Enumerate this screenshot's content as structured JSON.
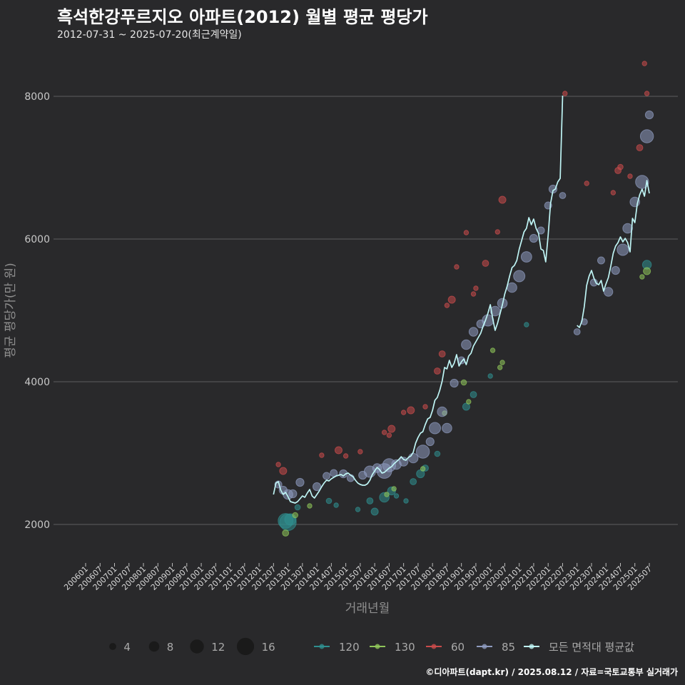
{
  "title": "흑석한강푸르지오 아파트(2012) 월별 평균 평당가",
  "subtitle": "2012-07-31 ~ 2025-07-20(최근계약일)",
  "footer": "©디아파트(dapt.kr) / 2025.08.12 / 자료=국토교통부 실거래가",
  "colors": {
    "background": "#29292b",
    "gridline": "#5d5d5f",
    "s120": "#2f8f8f",
    "s130": "#8fc65a",
    "s60": "#c94b4b",
    "s85": "#8e9bbf",
    "avgline": "#bff5f5"
  },
  "chart_data": {
    "type": "scatter",
    "title": "흑석한강푸르지오 아파트(2012) 월별 평균 평당가",
    "xlabel": "거래년월",
    "ylabel": "평균 평당가(만 원)",
    "ylim": [
      1500,
      8650
    ],
    "yticks": [
      2000,
      4000,
      6000,
      8000
    ],
    "x_range": [
      "2006-01",
      "2025-07"
    ],
    "x_ticks": [
      "200601",
      "200607",
      "200701",
      "200707",
      "200801",
      "200807",
      "200901",
      "200907",
      "201001",
      "201007",
      "201101",
      "201107",
      "201201",
      "201207",
      "201301",
      "201307",
      "201401",
      "201407",
      "201501",
      "201507",
      "201601",
      "201607",
      "201701",
      "201707",
      "201801",
      "201807",
      "201901",
      "201907",
      "202001",
      "202007",
      "202101",
      "202107",
      "202201",
      "202207",
      "202301",
      "202307",
      "202401",
      "202407",
      "202501",
      "202507"
    ],
    "legend_size": {
      "title": "",
      "entries": [
        4,
        8,
        12,
        16
      ]
    },
    "legend_series": [
      {
        "key": "s120",
        "label": "120"
      },
      {
        "key": "s130",
        "label": "130"
      },
      {
        "key": "s60",
        "label": "60"
      },
      {
        "key": "s85",
        "label": "85"
      },
      {
        "key": "avgline",
        "label": "모든 면적대 평균값"
      }
    ],
    "series": [
      {
        "name": "120",
        "key": "s120",
        "points": [
          [
            "2012-12",
            2050,
            14
          ],
          [
            "2013-01",
            2030,
            16
          ],
          [
            "2013-02",
            2070,
            10
          ],
          [
            "2013-05",
            2240,
            3
          ],
          [
            "2014-06",
            2330,
            3
          ],
          [
            "2014-09",
            2270,
            2
          ],
          [
            "2015-06",
            2210,
            2
          ],
          [
            "2015-11",
            2330,
            4
          ],
          [
            "2016-01",
            2180,
            5
          ],
          [
            "2016-05",
            2380,
            8
          ],
          [
            "2016-08",
            2470,
            6
          ],
          [
            "2016-10",
            2400,
            2
          ],
          [
            "2017-02",
            2330,
            2
          ],
          [
            "2017-05",
            2600,
            4
          ],
          [
            "2017-08",
            2710,
            6
          ],
          [
            "2017-10",
            2790,
            4
          ],
          [
            "2018-03",
            2990,
            3
          ],
          [
            "2019-03",
            3650,
            5
          ],
          [
            "2019-06",
            3820,
            4
          ],
          [
            "2020-01",
            4080,
            2
          ],
          [
            "2021-04",
            4800,
            2
          ],
          [
            "2025-06",
            5640,
            7
          ]
        ]
      },
      {
        "name": "130",
        "key": "s130",
        "points": [
          [
            "2012-12",
            1880,
            4
          ],
          [
            "2013-04",
            2130,
            3
          ],
          [
            "2013-10",
            2260,
            2
          ],
          [
            "2016-06",
            2420,
            2
          ],
          [
            "2016-09",
            2500,
            2
          ],
          [
            "2017-09",
            2780,
            2
          ],
          [
            "2018-06",
            3560,
            2
          ],
          [
            "2019-02",
            3990,
            3
          ],
          [
            "2019-04",
            3720,
            2
          ],
          [
            "2020-02",
            4440,
            2
          ],
          [
            "2020-05",
            4200,
            2
          ],
          [
            "2020-06",
            4270,
            2
          ],
          [
            "2025-06",
            5550,
            5
          ],
          [
            "2025-04",
            5470,
            2
          ]
        ]
      },
      {
        "name": "60",
        "key": "s60",
        "points": [
          [
            "2012-09",
            2840,
            2
          ],
          [
            "2012-11",
            2750,
            5
          ],
          [
            "2014-03",
            2970,
            2
          ],
          [
            "2014-10",
            3040,
            5
          ],
          [
            "2015-01",
            2960,
            2
          ],
          [
            "2015-07",
            3020,
            2
          ],
          [
            "2016-05",
            3290,
            2
          ],
          [
            "2016-07",
            3250,
            2
          ],
          [
            "2016-08",
            3340,
            5
          ],
          [
            "2017-01",
            3570,
            2
          ],
          [
            "2017-04",
            3600,
            5
          ],
          [
            "2017-10",
            3650,
            2
          ],
          [
            "2018-03",
            4150,
            4
          ],
          [
            "2018-05",
            4390,
            4
          ],
          [
            "2018-07",
            5070,
            2
          ],
          [
            "2018-09",
            5150,
            5
          ],
          [
            "2018-11",
            5610,
            2
          ],
          [
            "2019-03",
            6090,
            2
          ],
          [
            "2019-06",
            5230,
            2
          ],
          [
            "2019-07",
            5310,
            2
          ],
          [
            "2019-11",
            5660,
            4
          ],
          [
            "2020-04",
            6100,
            2
          ],
          [
            "2020-06",
            6550,
            5
          ],
          [
            "2022-08",
            8040,
            2
          ],
          [
            "2023-05",
            6780,
            2
          ],
          [
            "2024-04",
            6650,
            2
          ],
          [
            "2024-06",
            6960,
            4
          ],
          [
            "2024-07",
            7010,
            3
          ],
          [
            "2024-11",
            6880,
            2
          ],
          [
            "2025-03",
            7280,
            4
          ],
          [
            "2025-05",
            8460,
            2
          ],
          [
            "2025-06",
            8040,
            2
          ]
        ]
      },
      {
        "name": "85",
        "key": "s85",
        "points": [
          [
            "2012-09",
            2560,
            5
          ],
          [
            "2012-11",
            2480,
            6
          ],
          [
            "2013-01",
            2420,
            8
          ],
          [
            "2013-03",
            2430,
            6
          ],
          [
            "2013-06",
            2590,
            6
          ],
          [
            "2014-01",
            2530,
            6
          ],
          [
            "2014-05",
            2680,
            5
          ],
          [
            "2014-08",
            2720,
            5
          ],
          [
            "2014-12",
            2710,
            6
          ],
          [
            "2015-03",
            2650,
            5
          ],
          [
            "2015-08",
            2690,
            6
          ],
          [
            "2015-11",
            2740,
            10
          ],
          [
            "2016-02",
            2790,
            7
          ],
          [
            "2016-05",
            2750,
            14
          ],
          [
            "2016-07",
            2830,
            12
          ],
          [
            "2016-10",
            2840,
            8
          ],
          [
            "2017-01",
            2880,
            7
          ],
          [
            "2017-05",
            2930,
            8
          ],
          [
            "2017-09",
            3020,
            12
          ],
          [
            "2017-12",
            3160,
            6
          ],
          [
            "2018-02",
            3350,
            10
          ],
          [
            "2018-05",
            3580,
            8
          ],
          [
            "2018-07",
            3350,
            8
          ],
          [
            "2018-10",
            3980,
            6
          ],
          [
            "2019-01",
            4300,
            5
          ],
          [
            "2019-03",
            4520,
            8
          ],
          [
            "2019-06",
            4700,
            7
          ],
          [
            "2019-09",
            4810,
            6
          ],
          [
            "2019-12",
            4860,
            10
          ],
          [
            "2020-03",
            4990,
            8
          ],
          [
            "2020-06",
            5100,
            8
          ],
          [
            "2020-10",
            5320,
            8
          ],
          [
            "2021-01",
            5480,
            10
          ],
          [
            "2021-04",
            5750,
            9
          ],
          [
            "2021-07",
            6010,
            6
          ],
          [
            "2021-10",
            6120,
            5
          ],
          [
            "2022-01",
            6470,
            5
          ],
          [
            "2022-03",
            6700,
            6
          ],
          [
            "2022-07",
            6610,
            4
          ],
          [
            "2023-01",
            4700,
            4
          ],
          [
            "2023-04",
            4840,
            4
          ],
          [
            "2023-08",
            5390,
            5
          ],
          [
            "2023-11",
            5700,
            5
          ],
          [
            "2024-02",
            5260,
            7
          ],
          [
            "2024-05",
            5560,
            6
          ],
          [
            "2024-08",
            5850,
            10
          ],
          [
            "2024-10",
            6150,
            8
          ],
          [
            "2025-01",
            6520,
            8
          ],
          [
            "2025-04",
            6800,
            12
          ],
          [
            "2025-06",
            7440,
            12
          ],
          [
            "2025-07",
            7740,
            6
          ]
        ]
      }
    ],
    "avg_line": [
      [
        "2012-07",
        2420
      ],
      [
        "2012-08",
        2580
      ],
      [
        "2012-09",
        2600
      ],
      [
        "2012-10",
        2480
      ],
      [
        "2012-11",
        2420
      ],
      [
        "2012-12",
        2450
      ],
      [
        "2013-01",
        2390
      ],
      [
        "2013-02",
        2320
      ],
      [
        "2013-03",
        2310
      ],
      [
        "2013-04",
        2300
      ],
      [
        "2013-05",
        2320
      ],
      [
        "2013-06",
        2360
      ],
      [
        "2013-07",
        2400
      ],
      [
        "2013-08",
        2380
      ],
      [
        "2013-09",
        2440
      ],
      [
        "2013-10",
        2490
      ],
      [
        "2013-11",
        2400
      ],
      [
        "2013-12",
        2370
      ],
      [
        "2014-01",
        2420
      ],
      [
        "2014-02",
        2470
      ],
      [
        "2014-03",
        2530
      ],
      [
        "2014-04",
        2580
      ],
      [
        "2014-05",
        2620
      ],
      [
        "2014-06",
        2610
      ],
      [
        "2014-07",
        2640
      ],
      [
        "2014-08",
        2660
      ],
      [
        "2014-09",
        2680
      ],
      [
        "2014-10",
        2690
      ],
      [
        "2014-11",
        2700
      ],
      [
        "2014-12",
        2680
      ],
      [
        "2015-01",
        2710
      ],
      [
        "2015-02",
        2720
      ],
      [
        "2015-03",
        2690
      ],
      [
        "2015-04",
        2670
      ],
      [
        "2015-05",
        2620
      ],
      [
        "2015-06",
        2580
      ],
      [
        "2015-07",
        2560
      ],
      [
        "2015-08",
        2550
      ],
      [
        "2015-09",
        2550
      ],
      [
        "2015-10",
        2570
      ],
      [
        "2015-11",
        2620
      ],
      [
        "2015-12",
        2700
      ],
      [
        "2016-01",
        2750
      ],
      [
        "2016-02",
        2800
      ],
      [
        "2016-03",
        2770
      ],
      [
        "2016-04",
        2720
      ],
      [
        "2016-05",
        2730
      ],
      [
        "2016-06",
        2760
      ],
      [
        "2016-07",
        2790
      ],
      [
        "2016-08",
        2810
      ],
      [
        "2016-09",
        2850
      ],
      [
        "2016-10",
        2880
      ],
      [
        "2016-11",
        2910
      ],
      [
        "2016-12",
        2950
      ],
      [
        "2017-01",
        2910
      ],
      [
        "2017-02",
        2900
      ],
      [
        "2017-03",
        2940
      ],
      [
        "2017-04",
        2960
      ],
      [
        "2017-05",
        3010
      ],
      [
        "2017-06",
        3140
      ],
      [
        "2017-07",
        3220
      ],
      [
        "2017-08",
        3280
      ],
      [
        "2017-09",
        3300
      ],
      [
        "2017-10",
        3400
      ],
      [
        "2017-11",
        3480
      ],
      [
        "2017-12",
        3500
      ],
      [
        "2018-01",
        3600
      ],
      [
        "2018-02",
        3740
      ],
      [
        "2018-03",
        3780
      ],
      [
        "2018-04",
        3880
      ],
      [
        "2018-05",
        4010
      ],
      [
        "2018-06",
        4200
      ],
      [
        "2018-07",
        4180
      ],
      [
        "2018-08",
        4300
      ],
      [
        "2018-09",
        4200
      ],
      [
        "2018-10",
        4260
      ],
      [
        "2018-11",
        4380
      ],
      [
        "2018-12",
        4220
      ],
      [
        "2019-01",
        4280
      ],
      [
        "2019-02",
        4320
      ],
      [
        "2019-03",
        4240
      ],
      [
        "2019-04",
        4360
      ],
      [
        "2019-05",
        4400
      ],
      [
        "2019-06",
        4500
      ],
      [
        "2019-07",
        4560
      ],
      [
        "2019-08",
        4620
      ],
      [
        "2019-09",
        4680
      ],
      [
        "2019-10",
        4780
      ],
      [
        "2019-11",
        4860
      ],
      [
        "2019-12",
        4960
      ],
      [
        "2020-01",
        5080
      ],
      [
        "2020-02",
        4880
      ],
      [
        "2020-03",
        4720
      ],
      [
        "2020-04",
        4820
      ],
      [
        "2020-05",
        4950
      ],
      [
        "2020-06",
        5080
      ],
      [
        "2020-07",
        5230
      ],
      [
        "2020-08",
        5340
      ],
      [
        "2020-09",
        5480
      ],
      [
        "2020-10",
        5600
      ],
      [
        "2020-11",
        5630
      ],
      [
        "2020-12",
        5700
      ],
      [
        "2021-01",
        5860
      ],
      [
        "2021-02",
        5980
      ],
      [
        "2021-03",
        6100
      ],
      [
        "2021-04",
        6150
      ],
      [
        "2021-05",
        6300
      ],
      [
        "2021-06",
        6200
      ],
      [
        "2021-07",
        6280
      ],
      [
        "2021-08",
        6150
      ],
      [
        "2021-09",
        6080
      ],
      [
        "2021-10",
        5860
      ],
      [
        "2021-11",
        5840
      ],
      [
        "2021-12",
        5680
      ],
      [
        "2022-01",
        6050
      ],
      [
        "2022-02",
        6500
      ],
      [
        "2022-03",
        6680
      ],
      [
        "2022-04",
        6700
      ],
      [
        "2022-05",
        6800
      ],
      [
        "2022-06",
        6850
      ],
      [
        "2022-07",
        8010
      ],
      null,
      [
        "2023-01",
        4790
      ],
      [
        "2023-02",
        4760
      ],
      [
        "2023-03",
        4850
      ],
      [
        "2023-04",
        5050
      ],
      [
        "2023-05",
        5350
      ],
      [
        "2023-06",
        5480
      ],
      [
        "2023-07",
        5560
      ],
      [
        "2023-08",
        5450
      ],
      [
        "2023-09",
        5380
      ],
      [
        "2023-10",
        5360
      ],
      [
        "2023-11",
        5420
      ],
      [
        "2023-12",
        5270
      ],
      [
        "2024-01",
        5370
      ],
      [
        "2024-02",
        5460
      ],
      [
        "2024-03",
        5620
      ],
      [
        "2024-04",
        5800
      ],
      [
        "2024-05",
        5900
      ],
      [
        "2024-06",
        5950
      ],
      [
        "2024-07",
        6030
      ],
      [
        "2024-08",
        5960
      ],
      [
        "2024-09",
        6010
      ],
      [
        "2024-10",
        5950
      ],
      [
        "2024-11",
        5820
      ],
      [
        "2024-12",
        6290
      ],
      [
        "2025-01",
        6230
      ],
      [
        "2025-02",
        6490
      ],
      [
        "2025-03",
        6620
      ],
      [
        "2025-04",
        6700
      ],
      [
        "2025-05",
        6600
      ],
      [
        "2025-06",
        6820
      ],
      [
        "2025-07",
        6640
      ]
    ]
  }
}
